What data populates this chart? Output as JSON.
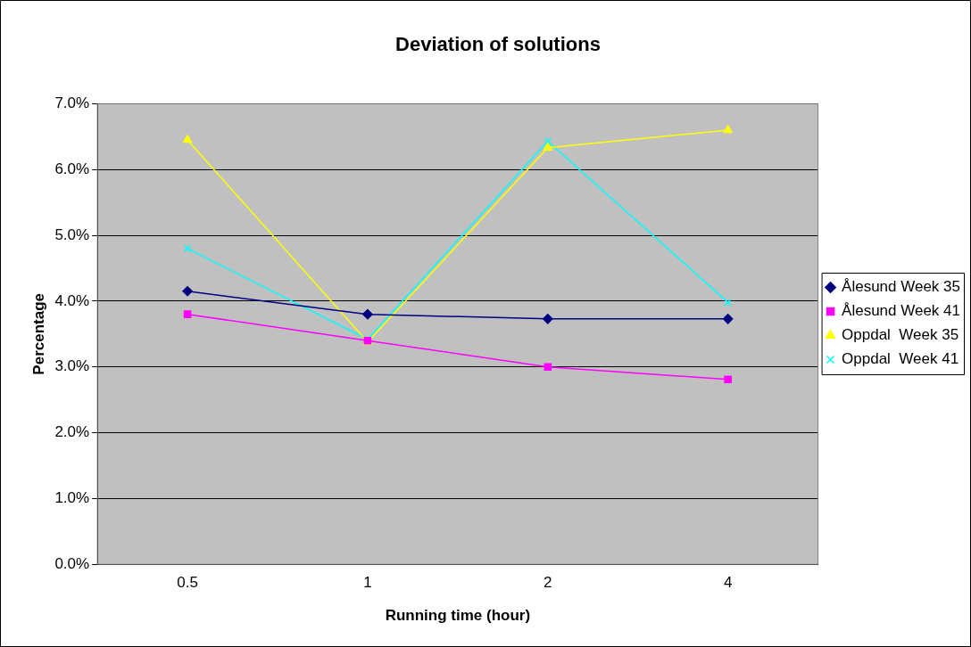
{
  "chart_data": {
    "type": "line",
    "title": "Deviation of solutions",
    "xlabel": "Running time (hour)",
    "ylabel": "Percentage",
    "categories": [
      "0.5",
      "1",
      "2",
      "4"
    ],
    "series": [
      {
        "name": "Ålesund Week 35",
        "color": "#000080",
        "marker": "diamond",
        "values": [
          4.15,
          3.8,
          3.73,
          3.73
        ]
      },
      {
        "name": "Ålesund Week 41",
        "color": "#ff00ff",
        "marker": "square",
        "values": [
          3.8,
          3.4,
          3.0,
          2.81
        ]
      },
      {
        "name": "Oppdal  Week 35",
        "color": "#ffff00",
        "marker": "triangle",
        "values": [
          6.45,
          3.38,
          6.33,
          6.6
        ]
      },
      {
        "name": "Oppdal  Week 41",
        "color": "#00ffff",
        "marker": "cross",
        "values": [
          4.8,
          3.42,
          6.43,
          3.98
        ]
      }
    ],
    "ylim": [
      0,
      7
    ],
    "yticks": [
      {
        "value": 0,
        "label": "0.0%"
      },
      {
        "value": 1,
        "label": "1.0%"
      },
      {
        "value": 2,
        "label": "2.0%"
      },
      {
        "value": 3,
        "label": "3.0%"
      },
      {
        "value": 4,
        "label": "4.0%"
      },
      {
        "value": 5,
        "label": "5.0%"
      },
      {
        "value": 6,
        "label": "6.0%"
      },
      {
        "value": 7,
        "label": "7.0%"
      }
    ],
    "grid": "y",
    "legend": "right",
    "line_style": "solid"
  }
}
